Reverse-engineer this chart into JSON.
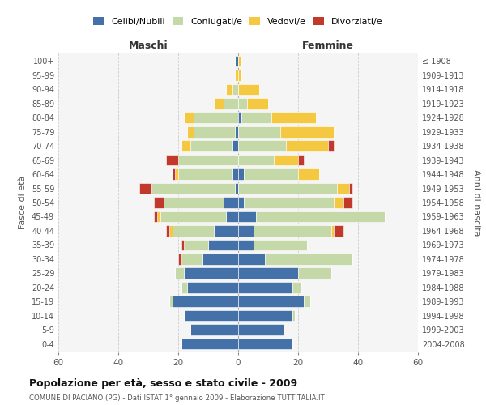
{
  "age_groups": [
    "0-4",
    "5-9",
    "10-14",
    "15-19",
    "20-24",
    "25-29",
    "30-34",
    "35-39",
    "40-44",
    "45-49",
    "50-54",
    "55-59",
    "60-64",
    "65-69",
    "70-74",
    "75-79",
    "80-84",
    "85-89",
    "90-94",
    "95-99",
    "100+"
  ],
  "birth_years": [
    "2004-2008",
    "1999-2003",
    "1994-1998",
    "1989-1993",
    "1984-1988",
    "1979-1983",
    "1974-1978",
    "1969-1973",
    "1964-1968",
    "1959-1963",
    "1954-1958",
    "1949-1953",
    "1944-1948",
    "1939-1943",
    "1934-1938",
    "1929-1933",
    "1924-1928",
    "1919-1923",
    "1914-1918",
    "1909-1913",
    "≤ 1908"
  ],
  "males": {
    "celibi": [
      19,
      16,
      18,
      22,
      17,
      18,
      12,
      10,
      8,
      4,
      5,
      1,
      2,
      0,
      2,
      1,
      0,
      0,
      0,
      0,
      1
    ],
    "coniugati": [
      0,
      0,
      0,
      1,
      2,
      3,
      7,
      8,
      14,
      22,
      20,
      28,
      18,
      20,
      14,
      14,
      15,
      5,
      2,
      0,
      0
    ],
    "vedovi": [
      0,
      0,
      0,
      0,
      0,
      0,
      0,
      0,
      1,
      1,
      0,
      0,
      1,
      0,
      3,
      2,
      3,
      3,
      2,
      1,
      0
    ],
    "divorziati": [
      0,
      0,
      0,
      0,
      0,
      0,
      1,
      1,
      1,
      1,
      3,
      4,
      1,
      4,
      0,
      0,
      0,
      0,
      0,
      0,
      0
    ]
  },
  "females": {
    "nubili": [
      18,
      15,
      18,
      22,
      18,
      20,
      9,
      5,
      5,
      6,
      2,
      0,
      2,
      0,
      0,
      0,
      1,
      0,
      0,
      0,
      0
    ],
    "coniugate": [
      0,
      0,
      1,
      2,
      3,
      11,
      29,
      18,
      26,
      43,
      30,
      33,
      18,
      12,
      16,
      14,
      10,
      3,
      0,
      0,
      0
    ],
    "vedove": [
      0,
      0,
      0,
      0,
      0,
      0,
      0,
      0,
      1,
      0,
      3,
      4,
      7,
      8,
      14,
      18,
      15,
      7,
      7,
      1,
      1
    ],
    "divorziate": [
      0,
      0,
      0,
      0,
      0,
      0,
      0,
      0,
      3,
      0,
      3,
      1,
      0,
      2,
      2,
      0,
      0,
      0,
      0,
      0,
      0
    ]
  },
  "colors": {
    "celibi": "#4472a8",
    "coniugati": "#c5d9a8",
    "vedovi": "#f5c842",
    "divorziati": "#c0392b"
  },
  "xlim": 60,
  "title": "Popolazione per età, sesso e stato civile - 2009",
  "subtitle": "COMUNE DI PACIANO (PG) - Dati ISTAT 1° gennaio 2009 - Elaborazione TUTTITALIA.IT",
  "ylabel_left": "Fasce di età",
  "ylabel_right": "Anni di nascita",
  "xlabel_left": "Maschi",
  "xlabel_right": "Femmine",
  "legend_labels": [
    "Celibi/Nubili",
    "Coniugati/e",
    "Vedovi/e",
    "Divorziati/e"
  ],
  "bg_color": "#f5f5f5",
  "grid_color": "#cccccc"
}
